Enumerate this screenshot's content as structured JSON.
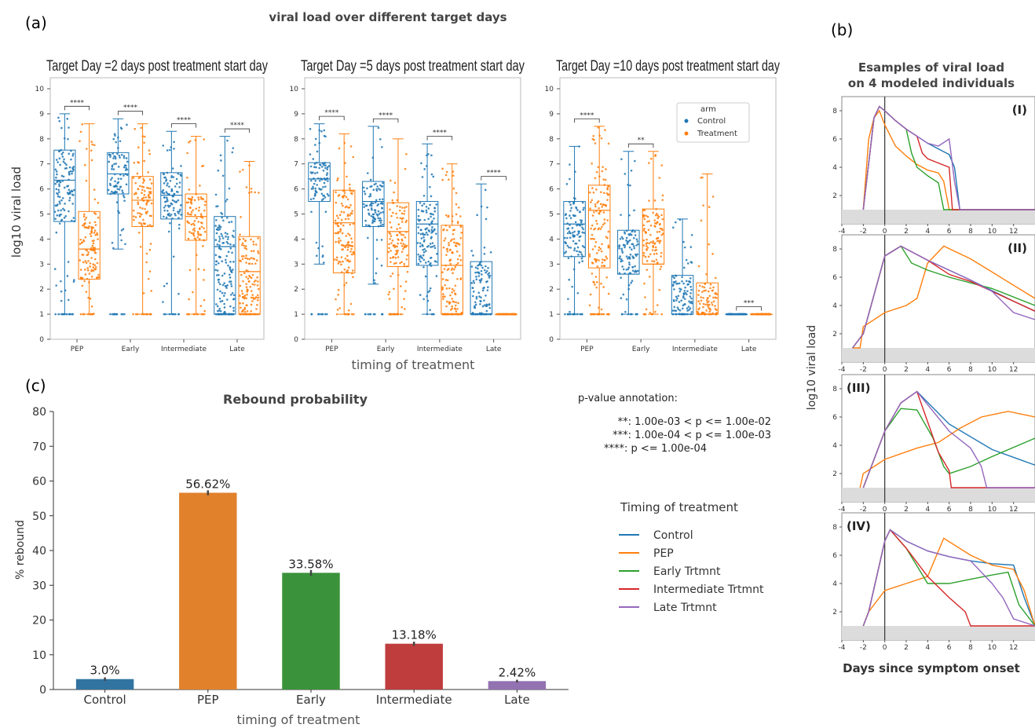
{
  "figure": {
    "panel_a_letter": "(a)",
    "panel_b_letter": "(b)",
    "panel_c_letter": "(c)",
    "panel_a_title": "viral load over different target days",
    "panel_a_ylabel": "log10 viral load",
    "panel_a_xlabel": "timing of treatment",
    "panel_b_title_line1": "Esamples of viral load",
    "panel_b_title_line2": "on 4 modeled individuals",
    "panel_b_ylabel": "log10 viral load",
    "panel_b_xlabel": "Days since symptom onset",
    "panel_c_title": "Rebound probability",
    "panel_c_xlabel": "timing of treatment",
    "panel_c_ylabel": "% rebound",
    "pvalue_title": "p-value annotation:",
    "pvalue_lines": [
      "**: 1.00e-03 < p <= 1.00e-02",
      "***: 1.00e-04 < p <= 1.00e-03",
      "****:  p <= 1.00e-04"
    ],
    "legend_title": "Timing of treatment",
    "legend_items": [
      {
        "label": "Control",
        "color": "#1f77b4"
      },
      {
        "label": "PEP",
        "color": "#ff7f0e"
      },
      {
        "label": "Early Trtmnt",
        "color": "#2ca02c"
      },
      {
        "label": "Intermediate Trtmnt",
        "color": "#d62728"
      },
      {
        "label": "Late Trtmnt",
        "color": "#9467bd"
      }
    ],
    "box_legend": {
      "title": "arm",
      "items": [
        {
          "label": "Control",
          "color": "#1f77b4"
        },
        {
          "label": "Treatment",
          "color": "#ff7f0e"
        }
      ]
    },
    "colors": {
      "control": "#1f77b4",
      "treatment": "#ff7f0e",
      "green": "#2ca02c",
      "red": "#d62728",
      "purple": "#9467bd"
    }
  },
  "chart_data": [
    {
      "type": "box",
      "title": "Target Day =2 days post treatment start day",
      "categories": [
        "PEP",
        "Early",
        "Intermediate",
        "Late"
      ],
      "ylim": [
        0,
        10
      ],
      "yticks": [
        0,
        1,
        2,
        3,
        4,
        5,
        6,
        7,
        8,
        9,
        10
      ],
      "significance": [
        "****",
        "****",
        "****",
        "****"
      ],
      "series": [
        {
          "name": "Control",
          "boxes": [
            {
              "min": 1.0,
              "q1": 4.7,
              "median": 6.35,
              "q3": 7.55,
              "max": 9.0
            },
            {
              "min": 3.6,
              "q1": 5.8,
              "median": 6.6,
              "q3": 7.45,
              "max": 8.8
            },
            {
              "min": 1.0,
              "q1": 4.8,
              "median": 5.75,
              "q3": 6.65,
              "max": 8.3
            },
            {
              "min": 1.0,
              "q1": 1.0,
              "median": 3.7,
              "q3": 4.9,
              "max": 8.1
            }
          ]
        },
        {
          "name": "Treatment",
          "boxes": [
            {
              "min": 1.0,
              "q1": 2.4,
              "median": 3.6,
              "q3": 5.1,
              "max": 8.6
            },
            {
              "min": 1.0,
              "q1": 4.5,
              "median": 5.55,
              "q3": 6.5,
              "max": 8.6
            },
            {
              "min": 1.0,
              "q1": 3.95,
              "median": 4.9,
              "q3": 5.8,
              "max": 8.1
            },
            {
              "min": 1.0,
              "q1": 1.0,
              "median": 2.7,
              "q3": 4.1,
              "max": 7.1
            }
          ]
        }
      ]
    },
    {
      "type": "box",
      "title": "Target Day =5 days post treatment start day",
      "categories": [
        "PEP",
        "Early",
        "Intermediate",
        "Late"
      ],
      "ylim": [
        0,
        10
      ],
      "yticks": [
        0,
        1,
        2,
        3,
        4,
        5,
        6,
        7,
        8,
        9,
        10
      ],
      "significance": [
        "****",
        "****",
        "****",
        "****"
      ],
      "series": [
        {
          "name": "Control",
          "boxes": [
            {
              "min": 3.0,
              "q1": 5.5,
              "median": 6.4,
              "q3": 7.05,
              "max": 8.6
            },
            {
              "min": 2.2,
              "q1": 4.5,
              "median": 5.5,
              "q3": 6.3,
              "max": 8.5
            },
            {
              "min": 1.0,
              "q1": 2.95,
              "median": 4.6,
              "q3": 5.5,
              "max": 7.8
            },
            {
              "min": 1.0,
              "q1": 1.0,
              "median": 1.0,
              "q3": 3.1,
              "max": 6.2
            }
          ]
        },
        {
          "name": "Treatment",
          "boxes": [
            {
              "min": 1.0,
              "q1": 2.65,
              "median": 4.65,
              "q3": 5.95,
              "max": 8.2
            },
            {
              "min": 1.0,
              "q1": 2.9,
              "median": 4.3,
              "q3": 5.45,
              "max": 8.0
            },
            {
              "min": 1.0,
              "q1": 1.0,
              "median": 2.95,
              "q3": 4.55,
              "max": 7.0
            },
            {
              "min": 1.0,
              "q1": 1.0,
              "median": 1.0,
              "q3": 1.0,
              "max": 1.0
            }
          ]
        }
      ]
    },
    {
      "type": "box",
      "title": "Target Day =10 days post treatment start day",
      "categories": [
        "PEP",
        "Early",
        "Intermediate",
        "Late"
      ],
      "ylim": [
        0,
        10
      ],
      "yticks": [
        0,
        1,
        2,
        3,
        4,
        5,
        6,
        7,
        8,
        9,
        10
      ],
      "significance": [
        "****",
        "**",
        "",
        "***"
      ],
      "series": [
        {
          "name": "Control",
          "boxes": [
            {
              "min": 1.0,
              "q1": 3.3,
              "median": 4.6,
              "q3": 5.5,
              "max": 7.7
            },
            {
              "min": 1.0,
              "q1": 2.6,
              "median": 2.6,
              "q3": 4.35,
              "max": 7.5
            },
            {
              "min": 1.0,
              "q1": 1.0,
              "median": 1.0,
              "q3": 2.55,
              "max": 4.8
            },
            {
              "min": 1.0,
              "q1": 1.0,
              "median": 1.0,
              "q3": 1.0,
              "max": 1.0
            }
          ]
        },
        {
          "name": "Treatment",
          "boxes": [
            {
              "min": 1.0,
              "q1": 2.85,
              "median": 5.15,
              "q3": 6.15,
              "max": 8.5
            },
            {
              "min": 1.0,
              "q1": 3.0,
              "median": 3.0,
              "q3": 5.2,
              "max": 7.5
            },
            {
              "min": 1.0,
              "q1": 1.0,
              "median": 1.0,
              "q3": 2.25,
              "max": 6.6
            },
            {
              "min": 1.0,
              "q1": 1.0,
              "median": 1.0,
              "q3": 1.0,
              "max": 1.0
            }
          ]
        }
      ]
    },
    {
      "type": "line",
      "label": "(I)",
      "xlim": [
        -4,
        14
      ],
      "ylim": [
        0,
        9
      ],
      "xticks": [
        -4,
        -2,
        0,
        2,
        4,
        6,
        8,
        10,
        12
      ],
      "yticks": [
        2,
        4,
        6,
        8
      ],
      "series": [
        {
          "name": "Control",
          "x": [
            -2,
            -1,
            -0.5,
            0,
            1,
            2,
            3,
            4,
            5,
            6,
            6.5,
            7,
            14
          ],
          "y": [
            1,
            7.5,
            8.3,
            8.0,
            7.3,
            6.7,
            6.2,
            5.7,
            5.3,
            4.9,
            4.0,
            1,
            1
          ]
        },
        {
          "name": "PEP",
          "x": [
            -2,
            -1.5,
            -1,
            -0.5,
            0,
            1,
            2,
            3,
            4,
            5,
            5.5,
            6,
            14
          ],
          "y": [
            1,
            6,
            7.5,
            8.0,
            7.0,
            5.5,
            4.8,
            4.2,
            3.8,
            3.6,
            3.0,
            1,
            1
          ]
        },
        {
          "name": "Early Trtmnt",
          "x": [
            -2,
            -1,
            -0.5,
            0,
            1,
            2,
            2.5,
            3,
            4,
            5,
            5.5,
            14
          ],
          "y": [
            1,
            7.5,
            8.3,
            8.0,
            7.3,
            6.7,
            5.0,
            4.0,
            3.4,
            2.9,
            1,
            1
          ]
        },
        {
          "name": "Intermediate Trtmnt",
          "x": [
            -2,
            -1,
            -0.5,
            0,
            1,
            2,
            3,
            3.5,
            4,
            5,
            6,
            6.3,
            14
          ],
          "y": [
            1,
            7.5,
            8.3,
            8.0,
            7.3,
            6.7,
            6.2,
            5.0,
            4.6,
            4.3,
            4.0,
            1,
            1
          ]
        },
        {
          "name": "Late Trtmnt",
          "x": [
            -2,
            -1,
            -0.5,
            0,
            1,
            2,
            3,
            4,
            5,
            6,
            6.5,
            7,
            14
          ],
          "y": [
            1,
            7.5,
            8.3,
            8.0,
            7.3,
            6.7,
            6.2,
            5.7,
            5.5,
            6.0,
            3.0,
            1,
            1
          ]
        }
      ]
    },
    {
      "type": "line",
      "label": "(II)",
      "xlim": [
        -4,
        14
      ],
      "ylim": [
        0,
        9
      ],
      "xticks": [
        -4,
        -2,
        0,
        2,
        4,
        6,
        8,
        10,
        12
      ],
      "yticks": [
        2,
        4,
        6,
        8
      ],
      "series": [
        {
          "name": "Control",
          "x": [
            -3,
            -2,
            0,
            1.5,
            4,
            8,
            12,
            14
          ],
          "y": [
            1,
            2,
            7.5,
            8.2,
            7.2,
            5.8,
            4.3,
            3.6
          ]
        },
        {
          "name": "PEP",
          "x": [
            -3,
            -2.3,
            -2,
            0,
            2,
            3,
            4,
            5.5,
            8,
            11,
            14
          ],
          "y": [
            1,
            1,
            2.5,
            3.5,
            4,
            4.5,
            7,
            8.2,
            7.3,
            5.9,
            4.5
          ]
        },
        {
          "name": "Early Trtmnt",
          "x": [
            -3,
            -2,
            0,
            1.5,
            2.5,
            4,
            6,
            10,
            14
          ],
          "y": [
            1,
            2,
            7.5,
            8.2,
            7.0,
            6.5,
            6.0,
            5.2,
            4.0
          ]
        },
        {
          "name": "Intermediate Trtmnt",
          "x": [
            -3,
            -2,
            0,
            1.5,
            4,
            6,
            8,
            14
          ],
          "y": [
            1,
            2,
            7.5,
            8.2,
            7.2,
            6.2,
            5.7,
            3.6
          ]
        },
        {
          "name": "Late Trtmnt",
          "x": [
            -3,
            -2,
            0,
            1.5,
            4,
            8,
            10,
            12,
            14
          ],
          "y": [
            1,
            2,
            7.5,
            8.2,
            7.2,
            5.8,
            5.0,
            3.5,
            3.0
          ]
        }
      ]
    },
    {
      "type": "line",
      "label": "(III)",
      "xlim": [
        -4,
        14
      ],
      "ylim": [
        0,
        9
      ],
      "xticks": [
        -4,
        -2,
        0,
        2,
        4,
        6,
        8,
        10,
        12
      ],
      "yticks": [
        2,
        4,
        6,
        8
      ],
      "series": [
        {
          "name": "Control",
          "x": [
            -2,
            0,
            1.5,
            3,
            6,
            10,
            14
          ],
          "y": [
            1,
            5.0,
            7.0,
            7.8,
            5.5,
            3.7,
            2.6
          ]
        },
        {
          "name": "PEP",
          "x": [
            -2.3,
            -2,
            0,
            3,
            5,
            7,
            9,
            11.5,
            14
          ],
          "y": [
            1,
            2,
            3,
            3.8,
            4.2,
            5.2,
            6.0,
            6.4,
            6.0
          ]
        },
        {
          "name": "Early Trtmnt",
          "x": [
            -2,
            0,
            1.5,
            3,
            4.5,
            5.5,
            6,
            8,
            10,
            14
          ],
          "y": [
            1,
            5.0,
            6.6,
            6.5,
            4.5,
            2.5,
            2.0,
            2.5,
            3.2,
            4.5
          ]
        },
        {
          "name": "Intermediate Trtmnt",
          "x": [
            -2,
            0,
            1.5,
            3,
            5,
            6,
            6.2,
            14
          ],
          "y": [
            1,
            5.0,
            7.0,
            7.8,
            3.5,
            2.2,
            1,
            1
          ]
        },
        {
          "name": "Late Trtmnt",
          "x": [
            -2,
            0,
            1.5,
            3,
            6,
            8,
            9,
            9.5,
            14
          ],
          "y": [
            1,
            5.0,
            7.0,
            7.8,
            5.0,
            3.8,
            2.5,
            1,
            1
          ]
        }
      ]
    },
    {
      "type": "line",
      "label": "(IV)",
      "xlim": [
        -4,
        14
      ],
      "ylim": [
        0,
        9
      ],
      "xticks": [
        -4,
        -2,
        0,
        2,
        4,
        6,
        8,
        10,
        12
      ],
      "yticks": [
        2,
        4,
        6,
        8
      ],
      "series": [
        {
          "name": "Control",
          "x": [
            -2,
            -1.5,
            0,
            0.5,
            2,
            4,
            6,
            8,
            10,
            12,
            13,
            14
          ],
          "y": [
            1,
            2,
            7.0,
            7.8,
            7.0,
            6.3,
            5.9,
            5.6,
            5.4,
            5.3,
            3.0,
            1
          ]
        },
        {
          "name": "PEP",
          "x": [
            -2,
            -1.5,
            0,
            2,
            4,
            5.5,
            8,
            10,
            12,
            13,
            14
          ],
          "y": [
            1,
            2,
            3.5,
            4.0,
            4.5,
            7.2,
            6.0,
            5.3,
            5.0,
            3.5,
            1
          ]
        },
        {
          "name": "Early Trtmnt",
          "x": [
            -2,
            -1.5,
            0,
            0.5,
            2,
            4,
            6,
            8,
            10,
            11.5,
            12.5,
            14
          ],
          "y": [
            1,
            2,
            7.0,
            7.8,
            6.5,
            4.0,
            4.0,
            4.3,
            4.6,
            4.8,
            2.5,
            1
          ]
        },
        {
          "name": "Intermediate Trtmnt",
          "x": [
            -2,
            -1.5,
            0,
            0.5,
            2,
            4,
            6,
            7.5,
            8,
            14
          ],
          "y": [
            1,
            2,
            7.0,
            7.8,
            6.5,
            4.5,
            3.0,
            2.0,
            1,
            1
          ]
        },
        {
          "name": "Late Trtmnt",
          "x": [
            -2,
            -1.5,
            0,
            0.5,
            2,
            4,
            6,
            8,
            10,
            11,
            12,
            14
          ],
          "y": [
            1,
            2,
            7.0,
            7.8,
            7.0,
            6.3,
            5.9,
            5.6,
            4.0,
            3.0,
            1.5,
            1
          ]
        }
      ]
    },
    {
      "type": "bar",
      "title": "Rebound probability",
      "categories": [
        "Control",
        "PEP",
        "Early",
        "Intermediate",
        "Late"
      ],
      "values": [
        3.0,
        56.62,
        33.58,
        13.18,
        2.42
      ],
      "value_labels": [
        "3.0%",
        "56.62%",
        "33.58%",
        "13.18%",
        "2.42%"
      ],
      "errors": [
        0.5,
        0.7,
        0.8,
        0.6,
        0.4
      ],
      "colors": [
        "#3274a1",
        "#e1812c",
        "#3a923a",
        "#c03d3e",
        "#9372b2"
      ],
      "ylim": [
        0,
        80
      ],
      "yticks": [
        0,
        10,
        20,
        30,
        40,
        50,
        60,
        70,
        80
      ],
      "xlabel": "timing of treatment",
      "ylabel": "% rebound"
    }
  ]
}
